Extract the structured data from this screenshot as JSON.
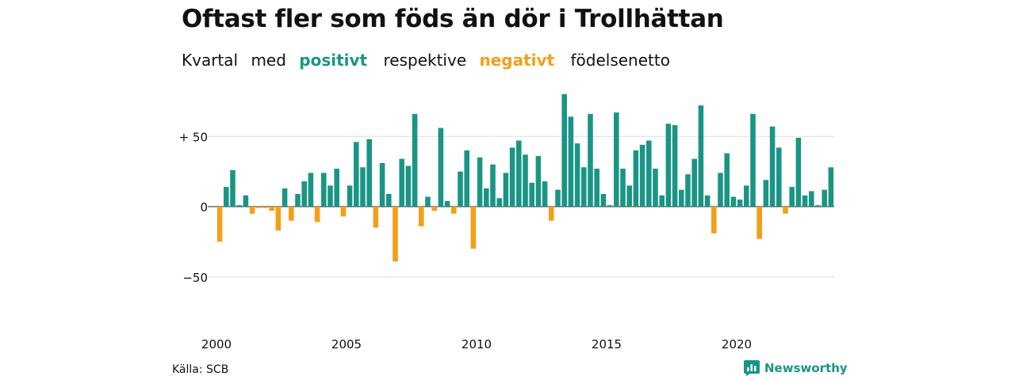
{
  "title": "Oftast fler som föds än dör i Trollhättan",
  "subtitle": {
    "part1": "Kvartal",
    "part2": "med",
    "positive": "positivt",
    "part3": "respektive",
    "negative": "negativt",
    "part4": "födelsenetto"
  },
  "source": "Källa: SCB",
  "brand": "Newsworthy",
  "colors": {
    "positive": "#1a9585",
    "negative": "#f39f18",
    "grid": "#dddddd",
    "zero": "#222222"
  },
  "chart_data": {
    "type": "bar",
    "ylim": [
      -65,
      82
    ],
    "y_ticks": [
      {
        "value": 50,
        "label": "+ 50"
      },
      {
        "value": 0,
        "label": "0"
      },
      {
        "value": -50,
        "label": "−50"
      }
    ],
    "x_ticks": [
      {
        "value": 2000,
        "label": "2000"
      },
      {
        "value": 2005,
        "label": "2005"
      },
      {
        "value": 2010,
        "label": "2010"
      },
      {
        "value": 2015,
        "label": "2015"
      },
      {
        "value": 2020,
        "label": "2020"
      }
    ],
    "start_year": 2000,
    "quarters_per_year": 4,
    "values": [
      -25,
      14,
      26,
      1,
      8,
      -5,
      -1,
      -1,
      -3,
      -17,
      13,
      -10,
      9,
      18,
      24,
      -11,
      24,
      15,
      27,
      -7,
      15,
      46,
      28,
      48,
      -15,
      31,
      9,
      -39,
      34,
      29,
      66,
      -14,
      7,
      -3,
      56,
      4,
      -5,
      25,
      40,
      -30,
      35,
      13,
      30,
      6,
      24,
      42,
      47,
      37,
      17,
      36,
      18,
      -10,
      12,
      80,
      64,
      45,
      28,
      66,
      27,
      9,
      1,
      67,
      27,
      15,
      40,
      44,
      47,
      27,
      8,
      59,
      58,
      12,
      23,
      34,
      72,
      8,
      -19,
      24,
      38,
      7,
      5,
      15,
      66,
      -23,
      19,
      57,
      42,
      -5,
      14,
      49,
      8,
      11,
      1,
      12,
      28
    ]
  }
}
